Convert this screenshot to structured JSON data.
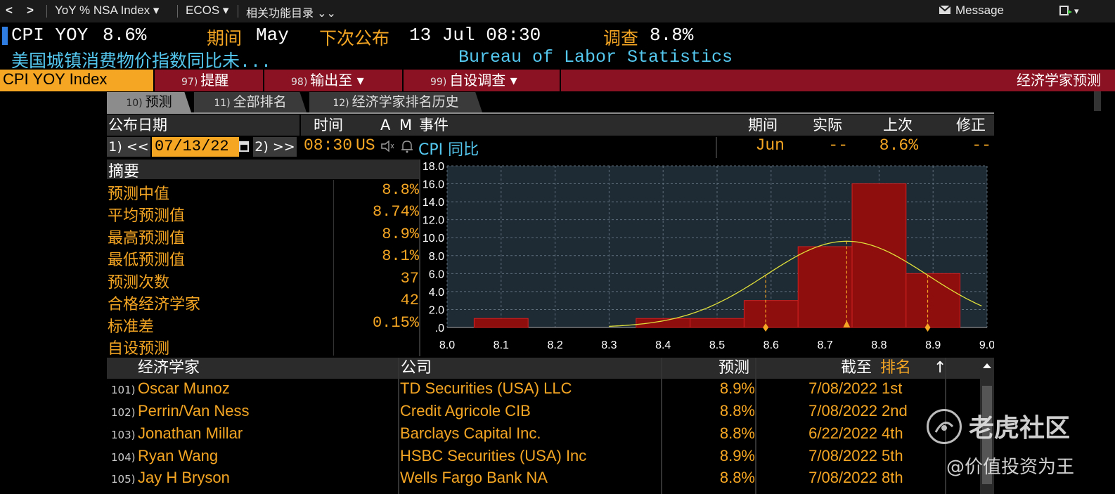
{
  "nav": {
    "back": "<",
    "forward": ">",
    "security_menu": "YoY % NSA Index ▾",
    "source_menu": "ECOS ▾",
    "related": "相关功能目录 ⌄⌄",
    "message": "Message",
    "window_menu": "▾"
  },
  "header": {
    "ticker": "CPI YOY",
    "value": "8.6%",
    "period_label": "期间",
    "period_value": "May",
    "next_release_label": "下次公布",
    "next_release_value": "13 Jul 08:30",
    "survey_label": "调查",
    "survey_value": "8.8%",
    "description": "美国城镇消费物价指数同比未...",
    "source": "Bureau of Labor Statistics"
  },
  "redbar": {
    "security": "CPI YOY Index",
    "b1_num": "97)",
    "b1_label": "提醒",
    "b2_num": "98)",
    "b2_label": "输出至 ▾",
    "b3_num": "99)",
    "b3_label": "自设调查 ▾",
    "page_title": "经济学家预测"
  },
  "tabs": [
    {
      "num": "10)",
      "label": "预测"
    },
    {
      "num": "11)",
      "label": "全部排名"
    },
    {
      "num": "12)",
      "label": "经济学家排名历史"
    }
  ],
  "event_table": {
    "headers": {
      "date": "公布日期",
      "time": "时间",
      "a": "A",
      "m": "M",
      "event": "事件",
      "period": "期间",
      "actual": "实际",
      "prior": "上次",
      "revised": "修正"
    },
    "prev_btn": "1) <<",
    "date": "07/13/22",
    "next_btn": "2) >>",
    "time": "08:30",
    "country": "US",
    "event": "CPI 同比",
    "period": "Jun",
    "actual": "--",
    "prior": "8.6%",
    "revised": "--"
  },
  "summary": {
    "title": "摘要",
    "rows": [
      {
        "label": "预测中值",
        "value": "8.8%"
      },
      {
        "label": "平均预测值",
        "value": "8.74%"
      },
      {
        "label": "最高预测值",
        "value": "8.9%"
      },
      {
        "label": "最低预测值",
        "value": "8.1%"
      },
      {
        "label": "预测次数",
        "value": "37"
      },
      {
        "label": "合格经济学家",
        "value": "42"
      },
      {
        "label": "标准差",
        "value": "0.15%"
      },
      {
        "label": "自设预测",
        "value": ""
      }
    ]
  },
  "chart_data": {
    "type": "bar",
    "x_ticks": [
      "8.0",
      "8.1",
      "8.2",
      "8.3",
      "8.4",
      "8.5",
      "8.6",
      "8.7",
      "8.8",
      "8.9",
      "9.0"
    ],
    "y_ticks": [
      ".0",
      "2.0",
      "4.0",
      "6.0",
      "8.0",
      "10.0",
      "12.0",
      "14.0",
      "16.0",
      "18.0"
    ],
    "xlim": [
      8.0,
      9.0
    ],
    "ylim": [
      0,
      18
    ],
    "bins": [
      {
        "from": 8.05,
        "to": 8.15,
        "count": 1
      },
      {
        "from": 8.35,
        "to": 8.45,
        "count": 1
      },
      {
        "from": 8.45,
        "to": 8.55,
        "count": 1
      },
      {
        "from": 8.55,
        "to": 8.65,
        "count": 3
      },
      {
        "from": 8.65,
        "to": 8.75,
        "count": 9
      },
      {
        "from": 8.75,
        "to": 8.85,
        "count": 16
      },
      {
        "from": 8.85,
        "to": 8.95,
        "count": 6
      }
    ],
    "normal_curve": {
      "mean": 8.74,
      "std": 0.15,
      "peak": 9.6,
      "x_range": [
        8.3,
        8.99
      ]
    },
    "markers": [
      8.59,
      8.74,
      8.89
    ],
    "grid": true,
    "colors": {
      "bar": "#8e0e0e",
      "bar_edge": "#d32020",
      "curve": "#e0e03a",
      "marker": "#f5a623",
      "plot_bg": "#1e2a34"
    }
  },
  "econ_table": {
    "headers": {
      "economist": "经济学家",
      "firm": "公司",
      "forecast": "预测",
      "asof": "截至",
      "rank": "排名",
      "sort": "↑"
    },
    "rows": [
      {
        "num": "101)",
        "name": "Oscar Munoz",
        "firm": "TD Securities (USA) LLC",
        "forecast": "8.9%",
        "asof": "7/08/2022",
        "rank": "1st"
      },
      {
        "num": "102)",
        "name": "Perrin/Van Ness",
        "firm": "Credit Agricole CIB",
        "forecast": "8.8%",
        "asof": "7/08/2022",
        "rank": "2nd"
      },
      {
        "num": "103)",
        "name": "Jonathan Millar",
        "firm": "Barclays Capital Inc.",
        "forecast": "8.8%",
        "asof": "6/22/2022",
        "rank": "4th"
      },
      {
        "num": "104)",
        "name": "Ryan Wang",
        "firm": "HSBC Securities (USA) Inc",
        "forecast": "8.9%",
        "asof": "7/08/2022",
        "rank": "5th"
      },
      {
        "num": "105)",
        "name": "Jay H Bryson",
        "firm": "Wells Fargo Bank NA",
        "forecast": "8.8%",
        "asof": "7/08/2022",
        "rank": "8th"
      }
    ]
  },
  "watermark": {
    "brand": "老虎社区",
    "handle": "@价值投资为王"
  }
}
